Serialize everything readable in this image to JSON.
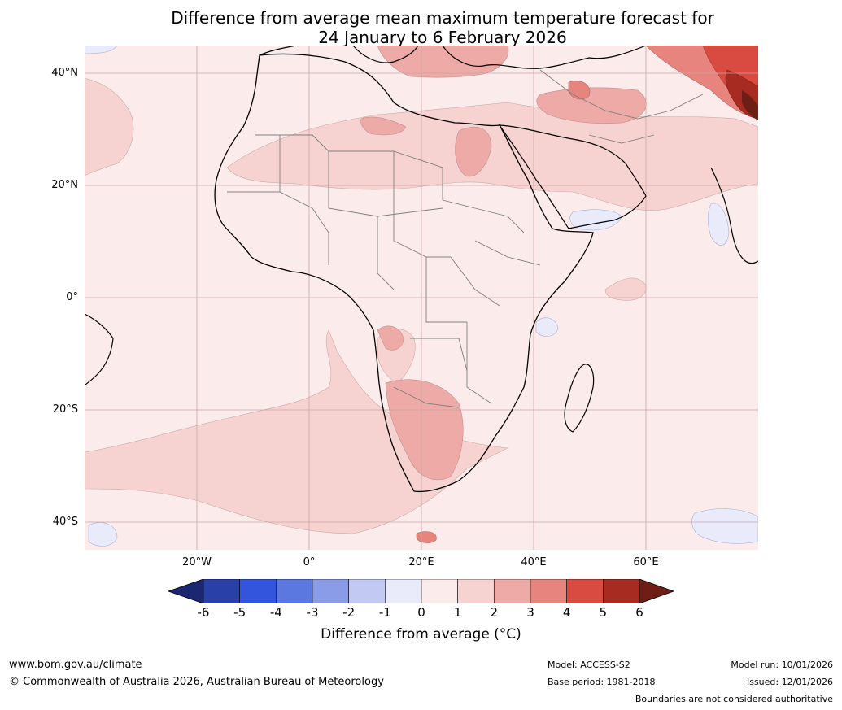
{
  "title": {
    "line1": "Difference from average mean maximum temperature forecast for",
    "line2": "24 January to 6 February 2026"
  },
  "map": {
    "latitude_labels": [
      "40°N",
      "20°N",
      "0°",
      "20°S",
      "40°S"
    ],
    "latitude_values": [
      40,
      20,
      0,
      -20,
      -40
    ],
    "longitude_labels": [
      "20°W",
      "0°",
      "20°E",
      "40°E",
      "60°E"
    ],
    "longitude_values": [
      -20,
      0,
      20,
      40,
      60
    ],
    "extent": {
      "lon_min": -40,
      "lon_max": 80,
      "lat_min": -45,
      "lat_max": 45
    },
    "ocean_color": "#fbeceb",
    "land_boundary_color": "#000000",
    "country_border_color": "#808080"
  },
  "colorbar": {
    "title": "Difference from average (°C)",
    "tick_labels": [
      "-6",
      "-5",
      "-4",
      "-3",
      "-2",
      "-1",
      "0",
      "1",
      "2",
      "3",
      "4",
      "5",
      "6"
    ],
    "colors": [
      "#1c2772",
      "#2840a8",
      "#3355dd",
      "#5a78e0",
      "#8a9ce8",
      "#c2c9f2",
      "#e9ebfb",
      "#fbeceb",
      "#f6d3d0",
      "#edaaa6",
      "#e8847e",
      "#d94b40",
      "#a82b22",
      "#6e1e15"
    ]
  },
  "footer": {
    "website": "www.bom.gov.au/climate",
    "copyright": "© Commonwealth of Australia 2026, Australian Bureau of Meteorology",
    "model": "Model: ACCESS-S2",
    "base_period": "Base period: 1981-2018",
    "model_run": "Model run: 10/01/2026",
    "issued": "Issued: 12/01/2026",
    "disclaimer": "Boundaries are not considered authoritative"
  }
}
